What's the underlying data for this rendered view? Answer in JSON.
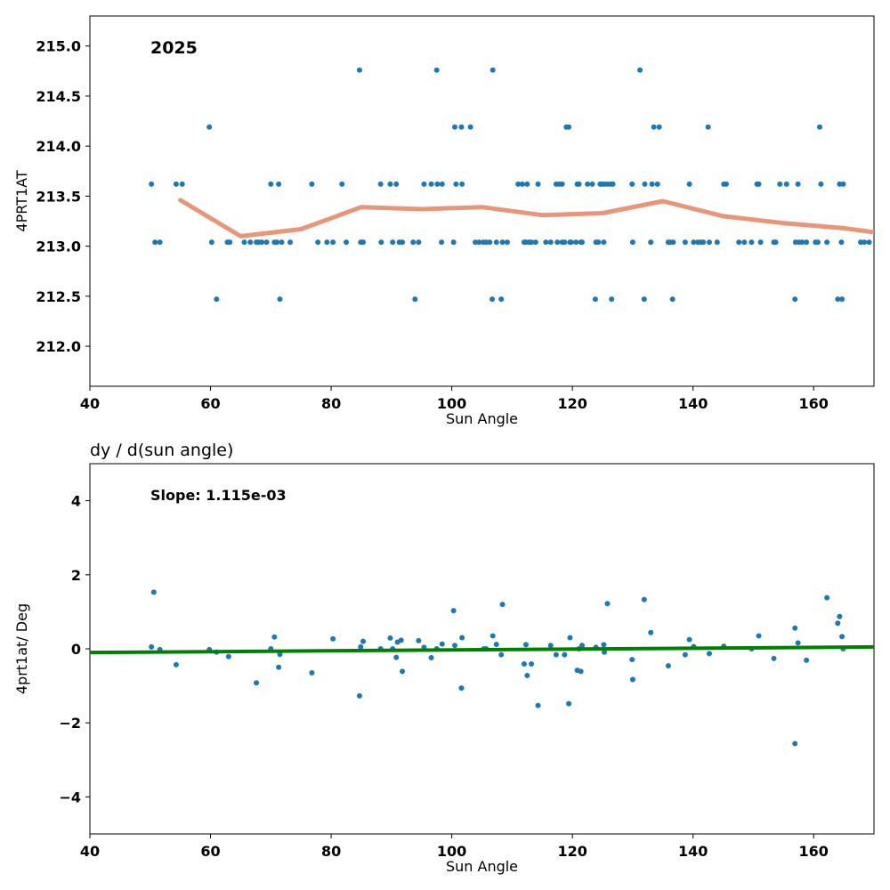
{
  "chart_data": [
    {
      "type": "scatter",
      "title": "",
      "annotation": "2025",
      "xlabel": "Sun Angle",
      "ylabel": "4PRT1AT",
      "xlim": [
        40,
        170
      ],
      "ylim": [
        211.6,
        215.3
      ],
      "xticks": [
        "40",
        "60",
        "80",
        "100",
        "120",
        "140",
        "160"
      ],
      "yticks": [
        "212.0",
        "212.5",
        "213.0",
        "213.5",
        "214.0",
        "214.5",
        "215.0"
      ],
      "grid": false,
      "point_color": "#1f77b4",
      "trend_color": "#e8967a",
      "points": [
        [
          50.2,
          213.62
        ],
        [
          50.8,
          213.04
        ],
        [
          51.6,
          213.04
        ],
        [
          54.3,
          213.62
        ],
        [
          55.3,
          213.62
        ],
        [
          59.8,
          214.19
        ],
        [
          60.2,
          213.04
        ],
        [
          61.0,
          212.47
        ],
        [
          62.8,
          213.04
        ],
        [
          63.2,
          213.04
        ],
        [
          65.6,
          213.04
        ],
        [
          66.6,
          213.04
        ],
        [
          67.6,
          213.04
        ],
        [
          68.0,
          213.04
        ],
        [
          68.5,
          213.04
        ],
        [
          69.3,
          213.04
        ],
        [
          70.0,
          213.62
        ],
        [
          70.6,
          213.04
        ],
        [
          71.0,
          213.04
        ],
        [
          71.3,
          213.62
        ],
        [
          71.5,
          212.47
        ],
        [
          71.8,
          213.04
        ],
        [
          73.2,
          213.04
        ],
        [
          76.8,
          213.62
        ],
        [
          77.8,
          213.04
        ],
        [
          79.3,
          213.04
        ],
        [
          80.3,
          213.04
        ],
        [
          81.8,
          213.62
        ],
        [
          82.5,
          213.04
        ],
        [
          84.7,
          214.76
        ],
        [
          84.9,
          213.04
        ],
        [
          85.3,
          213.04
        ],
        [
          88.2,
          213.62
        ],
        [
          88.3,
          213.04
        ],
        [
          89.8,
          213.62
        ],
        [
          90.2,
          213.04
        ],
        [
          90.8,
          213.62
        ],
        [
          91.3,
          213.04
        ],
        [
          91.8,
          213.04
        ],
        [
          93.6,
          213.04
        ],
        [
          93.9,
          212.47
        ],
        [
          94.5,
          213.04
        ],
        [
          95.4,
          213.62
        ],
        [
          96.6,
          213.62
        ],
        [
          97.5,
          214.76
        ],
        [
          97.6,
          213.62
        ],
        [
          98.3,
          213.04
        ],
        [
          98.4,
          213.62
        ],
        [
          100.3,
          213.04
        ],
        [
          100.5,
          214.19
        ],
        [
          100.7,
          213.62
        ],
        [
          101.6,
          214.19
        ],
        [
          101.7,
          213.62
        ],
        [
          103.1,
          214.19
        ],
        [
          103.9,
          213.04
        ],
        [
          104.5,
          213.04
        ],
        [
          105.2,
          213.04
        ],
        [
          105.7,
          213.04
        ],
        [
          106.3,
          213.04
        ],
        [
          106.7,
          212.47
        ],
        [
          106.8,
          214.76
        ],
        [
          107.4,
          213.04
        ],
        [
          108.2,
          212.47
        ],
        [
          108.4,
          213.04
        ],
        [
          109.2,
          213.04
        ],
        [
          111.0,
          213.62
        ],
        [
          111.7,
          213.62
        ],
        [
          112.0,
          213.04
        ],
        [
          112.3,
          213.04
        ],
        [
          112.5,
          213.62
        ],
        [
          112.8,
          213.04
        ],
        [
          113.2,
          213.04
        ],
        [
          113.9,
          213.04
        ],
        [
          114.3,
          213.62
        ],
        [
          115.6,
          213.04
        ],
        [
          116.4,
          213.04
        ],
        [
          117.3,
          213.62
        ],
        [
          117.5,
          213.04
        ],
        [
          117.8,
          213.62
        ],
        [
          118.3,
          213.04
        ],
        [
          118.3,
          213.62
        ],
        [
          118.7,
          213.04
        ],
        [
          119.0,
          214.19
        ],
        [
          119.4,
          214.19
        ],
        [
          119.6,
          213.04
        ],
        [
          119.8,
          213.04
        ],
        [
          120.6,
          213.04
        ],
        [
          120.8,
          213.62
        ],
        [
          121.1,
          213.62
        ],
        [
          121.4,
          213.04
        ],
        [
          121.6,
          213.04
        ],
        [
          122.5,
          213.62
        ],
        [
          123.3,
          213.62
        ],
        [
          123.8,
          212.47
        ],
        [
          123.9,
          213.04
        ],
        [
          124.3,
          213.04
        ],
        [
          124.6,
          213.62
        ],
        [
          124.9,
          213.62
        ],
        [
          125.2,
          213.04
        ],
        [
          125.3,
          213.62
        ],
        [
          125.8,
          213.62
        ],
        [
          126.3,
          213.62
        ],
        [
          126.5,
          212.47
        ],
        [
          126.7,
          213.62
        ],
        [
          129.9,
          213.62
        ],
        [
          130.0,
          213.04
        ],
        [
          131.2,
          214.76
        ],
        [
          131.9,
          212.47
        ],
        [
          132.0,
          213.62
        ],
        [
          133.0,
          213.04
        ],
        [
          133.2,
          213.62
        ],
        [
          133.5,
          214.19
        ],
        [
          134.1,
          213.62
        ],
        [
          134.4,
          214.19
        ],
        [
          135.9,
          213.04
        ],
        [
          136.2,
          213.04
        ],
        [
          136.6,
          212.47
        ],
        [
          136.7,
          213.04
        ],
        [
          138.7,
          213.04
        ],
        [
          139.4,
          213.62
        ],
        [
          140.1,
          213.04
        ],
        [
          140.8,
          213.04
        ],
        [
          141.3,
          213.04
        ],
        [
          141.7,
          213.04
        ],
        [
          142.5,
          214.19
        ],
        [
          142.7,
          213.04
        ],
        [
          144.0,
          213.04
        ],
        [
          145.1,
          213.62
        ],
        [
          145.5,
          213.62
        ],
        [
          147.6,
          213.04
        ],
        [
          148.5,
          213.04
        ],
        [
          149.7,
          213.04
        ],
        [
          150.6,
          213.62
        ],
        [
          150.9,
          213.62
        ],
        [
          151.2,
          213.04
        ],
        [
          153.4,
          213.04
        ],
        [
          153.7,
          213.04
        ],
        [
          154.4,
          213.62
        ],
        [
          155.5,
          213.62
        ],
        [
          156.9,
          212.47
        ],
        [
          157.0,
          213.04
        ],
        [
          157.4,
          213.62
        ],
        [
          157.6,
          213.04
        ],
        [
          158.1,
          213.04
        ],
        [
          158.8,
          213.04
        ],
        [
          160.3,
          213.04
        ],
        [
          160.7,
          213.04
        ],
        [
          161.0,
          214.19
        ],
        [
          161.2,
          213.62
        ],
        [
          162.2,
          213.04
        ],
        [
          164.0,
          212.47
        ],
        [
          164.3,
          213.62
        ],
        [
          164.6,
          213.04
        ],
        [
          164.7,
          212.47
        ],
        [
          164.9,
          213.62
        ],
        [
          167.8,
          213.04
        ],
        [
          168.4,
          213.04
        ],
        [
          169.2,
          213.04
        ]
      ],
      "trend": [
        [
          55.0,
          213.46
        ],
        [
          65.0,
          213.1
        ],
        [
          75.0,
          213.17
        ],
        [
          85.0,
          213.39
        ],
        [
          95.0,
          213.37
        ],
        [
          105.0,
          213.39
        ],
        [
          115.0,
          213.31
        ],
        [
          125.0,
          213.33
        ],
        [
          135.0,
          213.45
        ],
        [
          145.0,
          213.3
        ],
        [
          155.0,
          213.23
        ],
        [
          165.0,
          213.18
        ],
        [
          170.0,
          213.14
        ]
      ]
    },
    {
      "type": "scatter",
      "title": "dy / d(sun angle)",
      "annotation": "Slope: 1.115e-03",
      "xlabel": "Sun Angle",
      "ylabel": "4prt1at/ Deg",
      "xlim": [
        40,
        170
      ],
      "ylim": [
        -5,
        5
      ],
      "xticks": [
        "40",
        "60",
        "80",
        "100",
        "120",
        "140",
        "160"
      ],
      "yticks": [
        "−4",
        "−2",
        "0",
        "2",
        "4"
      ],
      "grid": false,
      "point_color": "#1f77b4",
      "fit_color": "#008000",
      "fit": {
        "slope": 0.001115,
        "x": [
          40,
          170
        ],
        "y": [
          -0.1,
          0.05
        ]
      },
      "points": [
        [
          50.2,
          0.05
        ],
        [
          50.6,
          1.53
        ],
        [
          51.6,
          -0.02
        ],
        [
          54.3,
          -0.43
        ],
        [
          59.8,
          -0.02
        ],
        [
          61.0,
          -0.09
        ],
        [
          63.0,
          -0.21
        ],
        [
          67.6,
          -0.92
        ],
        [
          70.0,
          0.0
        ],
        [
          70.6,
          0.32
        ],
        [
          71.3,
          -0.5
        ],
        [
          71.5,
          -0.15
        ],
        [
          76.8,
          -0.65
        ],
        [
          80.3,
          0.27
        ],
        [
          84.7,
          -1.27
        ],
        [
          84.9,
          0.05
        ],
        [
          85.3,
          0.2
        ],
        [
          88.2,
          0.0
        ],
        [
          89.8,
          0.29
        ],
        [
          90.2,
          0.0
        ],
        [
          90.8,
          -0.23
        ],
        [
          91.0,
          0.18
        ],
        [
          91.6,
          0.23
        ],
        [
          91.8,
          -0.61
        ],
        [
          94.5,
          0.22
        ],
        [
          95.4,
          0.04
        ],
        [
          96.6,
          -0.24
        ],
        [
          97.5,
          0.0
        ],
        [
          98.4,
          0.13
        ],
        [
          100.3,
          1.03
        ],
        [
          100.5,
          0.09
        ],
        [
          101.6,
          -1.06
        ],
        [
          101.7,
          0.3
        ],
        [
          105.3,
          0.0
        ],
        [
          105.7,
          0.0
        ],
        [
          106.8,
          0.35
        ],
        [
          107.4,
          0.12
        ],
        [
          108.2,
          -0.16
        ],
        [
          108.4,
          1.2
        ],
        [
          112.0,
          -0.41
        ],
        [
          112.3,
          0.11
        ],
        [
          112.5,
          -0.72
        ],
        [
          113.2,
          -0.41
        ],
        [
          114.3,
          -1.53
        ],
        [
          116.4,
          0.09
        ],
        [
          117.3,
          -0.16
        ],
        [
          118.7,
          -0.16
        ],
        [
          119.4,
          -1.48
        ],
        [
          119.6,
          0.3
        ],
        [
          120.8,
          -0.58
        ],
        [
          121.4,
          -0.61
        ],
        [
          121.1,
          0.0
        ],
        [
          121.6,
          0.09
        ],
        [
          123.9,
          0.04
        ],
        [
          125.2,
          0.11
        ],
        [
          125.3,
          -0.09
        ],
        [
          125.8,
          1.22
        ],
        [
          129.9,
          -0.29
        ],
        [
          130.0,
          -0.83
        ],
        [
          131.9,
          1.33
        ],
        [
          133.0,
          0.44
        ],
        [
          135.9,
          -0.46
        ],
        [
          138.7,
          -0.16
        ],
        [
          139.4,
          0.25
        ],
        [
          140.1,
          0.06
        ],
        [
          142.7,
          -0.13
        ],
        [
          145.1,
          0.07
        ],
        [
          149.7,
          0.0
        ],
        [
          150.9,
          0.35
        ],
        [
          153.4,
          -0.26
        ],
        [
          156.9,
          -2.56
        ],
        [
          156.9,
          0.56
        ],
        [
          157.4,
          0.16
        ],
        [
          158.8,
          -0.31
        ],
        [
          162.2,
          1.38
        ],
        [
          164.0,
          0.69
        ],
        [
          164.3,
          0.87
        ],
        [
          164.7,
          0.33
        ],
        [
          164.9,
          0.0
        ]
      ]
    }
  ]
}
